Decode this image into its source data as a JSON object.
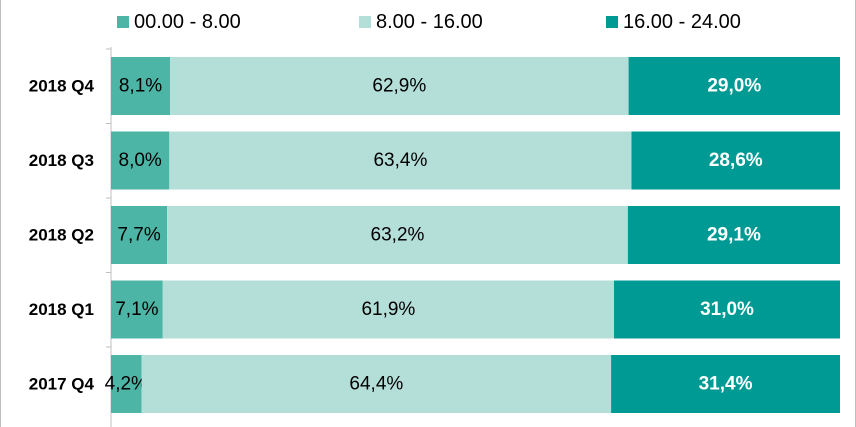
{
  "chart_data": {
    "type": "bar",
    "orientation": "horizontal",
    "stacked": "percent",
    "categories": [
      "2018 Q4",
      "2018 Q3",
      "2018 Q2",
      "2018 Q1",
      "2017 Q4"
    ],
    "series": [
      {
        "name": "00.00 - 8.00",
        "color": "#4cb5a5",
        "values": [
          8.1,
          8.0,
          7.7,
          7.1,
          4.2
        ],
        "labels": [
          "8,1%",
          "8,0%",
          "7,7%",
          "7,1%",
          "4,2%"
        ]
      },
      {
        "name": "8.00 - 16.00",
        "color": "#b4ded8",
        "values": [
          62.9,
          63.4,
          63.2,
          61.9,
          64.4
        ],
        "labels": [
          "62,9%",
          "63,4%",
          "63,2%",
          "61,9%",
          "64,4%"
        ]
      },
      {
        "name": "16.00 - 24.00",
        "color": "#009a94",
        "values": [
          29.0,
          28.6,
          29.1,
          31.0,
          31.4
        ],
        "labels": [
          "29,0%",
          "28,6%",
          "29,1%",
          "31,0%",
          "31,4%"
        ]
      }
    ],
    "xlim": [
      0,
      100
    ],
    "legend": "top",
    "grid": false
  }
}
